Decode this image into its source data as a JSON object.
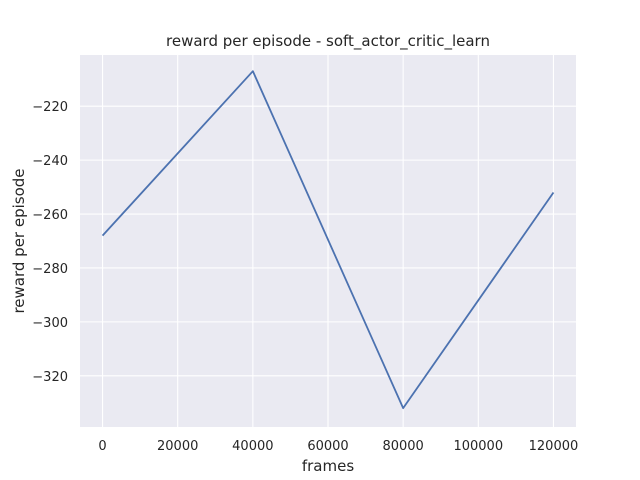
{
  "chart_data": {
    "type": "line",
    "title": "reward per episode - soft_actor_critic_learn",
    "xlabel": "frames",
    "ylabel": "reward per episode",
    "x": [
      0,
      40000,
      80000,
      120000
    ],
    "series": [
      {
        "values": [
          -268,
          -207,
          -332,
          -252
        ],
        "color": "#4c72b0"
      }
    ],
    "xticks": [
      0,
      20000,
      40000,
      60000,
      80000,
      100000,
      120000
    ],
    "yticks": [
      -320,
      -300,
      -280,
      -260,
      -240,
      -220
    ],
    "xlim": [
      -6000,
      126000
    ],
    "ylim": [
      -339,
      -201
    ],
    "grid": true,
    "background_color": "#eaeaf2",
    "grid_color": "#ffffff"
  }
}
